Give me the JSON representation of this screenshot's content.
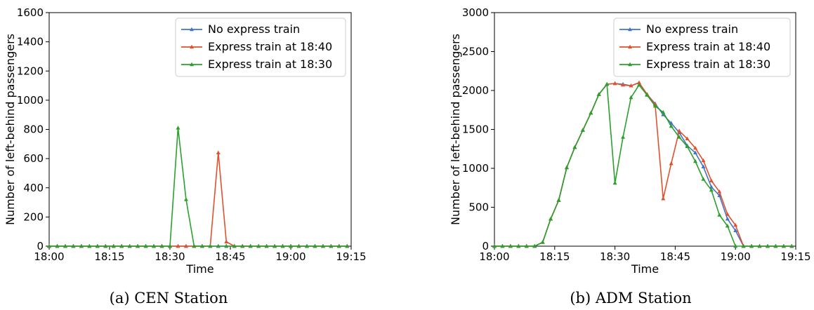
{
  "colors": {
    "No express train": "#4472c4",
    "Express train at 18:40": "#e0522d",
    "Express train at 18:30": "#2ca02c"
  },
  "chart_data": [
    {
      "type": "line",
      "caption": "(a) CEN Station",
      "xlabel": "Time",
      "ylabel": "Number of left-behind passengers",
      "xlim": [
        0,
        75
      ],
      "ylim": [
        0,
        1600
      ],
      "xticks": [
        0,
        15,
        30,
        45,
        60,
        75
      ],
      "xtick_labels": [
        "18:00",
        "18:15",
        "18:30",
        "18:45",
        "19:00",
        "19:15"
      ],
      "yticks": [
        0,
        200,
        400,
        600,
        800,
        1000,
        1200,
        1400,
        1600
      ],
      "ytick_labels": [
        "0",
        "200",
        "400",
        "600",
        "800",
        "1000",
        "1200",
        "1400",
        "1600"
      ],
      "legend_position": "top-right",
      "marker": "triangle-up",
      "series": [
        {
          "name": "No express train",
          "x": [
            0,
            2,
            4,
            6,
            8,
            10,
            12,
            14,
            16,
            18,
            20,
            22,
            24,
            26,
            28,
            30,
            32,
            34,
            36,
            38,
            40,
            42,
            44,
            46,
            48,
            50,
            52,
            54,
            56,
            58,
            60,
            62,
            64,
            66,
            68,
            70,
            72,
            74
          ],
          "y": [
            0,
            0,
            0,
            0,
            0,
            0,
            0,
            0,
            0,
            0,
            0,
            0,
            0,
            0,
            0,
            0,
            0,
            0,
            0,
            0,
            0,
            0,
            0,
            0,
            0,
            0,
            0,
            0,
            0,
            0,
            0,
            0,
            0,
            0,
            0,
            0,
            0,
            0
          ]
        },
        {
          "name": "Express train at 18:40",
          "x": [
            0,
            2,
            4,
            6,
            8,
            10,
            12,
            14,
            16,
            18,
            20,
            22,
            24,
            26,
            28,
            30,
            32,
            34,
            36,
            38,
            40,
            42,
            44,
            46,
            48,
            50,
            52,
            54,
            56,
            58,
            60,
            62,
            64,
            66,
            68,
            70,
            72,
            74
          ],
          "y": [
            0,
            0,
            0,
            0,
            0,
            0,
            0,
            0,
            0,
            0,
            0,
            0,
            0,
            0,
            0,
            0,
            0,
            0,
            0,
            0,
            0,
            640,
            30,
            0,
            0,
            0,
            0,
            0,
            0,
            0,
            0,
            0,
            0,
            0,
            0,
            0,
            0,
            0
          ]
        },
        {
          "name": "Express train at 18:30",
          "x": [
            0,
            2,
            4,
            6,
            8,
            10,
            12,
            14,
            16,
            18,
            20,
            22,
            24,
            26,
            28,
            30,
            32,
            34,
            36,
            38,
            40,
            42,
            44,
            46,
            48,
            50,
            52,
            54,
            56,
            58,
            60,
            62,
            64,
            66,
            68,
            70,
            72,
            74
          ],
          "y": [
            0,
            0,
            0,
            0,
            0,
            0,
            0,
            0,
            0,
            0,
            0,
            0,
            0,
            0,
            0,
            0,
            810,
            320,
            0,
            0,
            0,
            0,
            0,
            0,
            0,
            0,
            0,
            0,
            0,
            0,
            0,
            0,
            0,
            0,
            0,
            0,
            0,
            0
          ]
        }
      ]
    },
    {
      "type": "line",
      "caption": "(b) ADM Station",
      "xlabel": "Time",
      "ylabel": "Number of left-behind passengers",
      "xlim": [
        0,
        75
      ],
      "ylim": [
        0,
        3000
      ],
      "xticks": [
        0,
        15,
        30,
        45,
        60,
        75
      ],
      "xtick_labels": [
        "18:00",
        "18:15",
        "18:30",
        "18:45",
        "19:00",
        "19:15"
      ],
      "yticks": [
        0,
        500,
        1000,
        1500,
        2000,
        2500,
        3000
      ],
      "ytick_labels": [
        "0",
        "500",
        "1000",
        "1500",
        "2000",
        "2500",
        "3000"
      ],
      "legend_position": "top-right",
      "marker": "triangle-up",
      "series": [
        {
          "name": "No express train",
          "x": [
            0,
            2,
            4,
            6,
            8,
            10,
            12,
            14,
            16,
            18,
            20,
            22,
            24,
            26,
            28,
            30,
            32,
            34,
            36,
            38,
            40,
            42,
            44,
            46,
            48,
            50,
            52,
            54,
            56,
            58,
            60,
            62,
            64,
            66,
            68,
            70,
            72,
            74
          ],
          "y": [
            0,
            0,
            0,
            0,
            0,
            0,
            50,
            350,
            590,
            1010,
            1270,
            1490,
            1710,
            1950,
            2080,
            2090,
            2080,
            2060,
            2100,
            1950,
            1830,
            1690,
            1580,
            1460,
            1290,
            1200,
            1020,
            760,
            650,
            350,
            200,
            0,
            0,
            0,
            0,
            0,
            0,
            0
          ]
        },
        {
          "name": "Express train at 18:40",
          "x": [
            0,
            2,
            4,
            6,
            8,
            10,
            12,
            14,
            16,
            18,
            20,
            22,
            24,
            26,
            28,
            30,
            32,
            34,
            36,
            38,
            40,
            42,
            44,
            46,
            48,
            50,
            52,
            54,
            56,
            58,
            60,
            62,
            64,
            66,
            68,
            70,
            72,
            74
          ],
          "y": [
            0,
            0,
            0,
            0,
            0,
            0,
            50,
            350,
            590,
            1010,
            1270,
            1490,
            1710,
            1950,
            2080,
            2090,
            2070,
            2060,
            2100,
            1950,
            1820,
            610,
            1060,
            1480,
            1380,
            1260,
            1100,
            840,
            700,
            410,
            270,
            0,
            0,
            0,
            0,
            0,
            0,
            0
          ]
        },
        {
          "name": "Express train at 18:30",
          "x": [
            0,
            2,
            4,
            6,
            8,
            10,
            12,
            14,
            16,
            18,
            20,
            22,
            24,
            26,
            28,
            30,
            32,
            34,
            36,
            38,
            40,
            42,
            44,
            46,
            48,
            50,
            52,
            54,
            56,
            58,
            60,
            62,
            64,
            66,
            68,
            70,
            72,
            74
          ],
          "y": [
            0,
            0,
            0,
            0,
            0,
            0,
            50,
            350,
            590,
            1010,
            1270,
            1490,
            1710,
            1950,
            2080,
            810,
            1400,
            1910,
            2070,
            1940,
            1800,
            1720,
            1540,
            1400,
            1280,
            1090,
            860,
            720,
            400,
            260,
            0,
            0,
            0,
            0,
            0,
            0,
            0,
            0
          ]
        }
      ]
    }
  ]
}
